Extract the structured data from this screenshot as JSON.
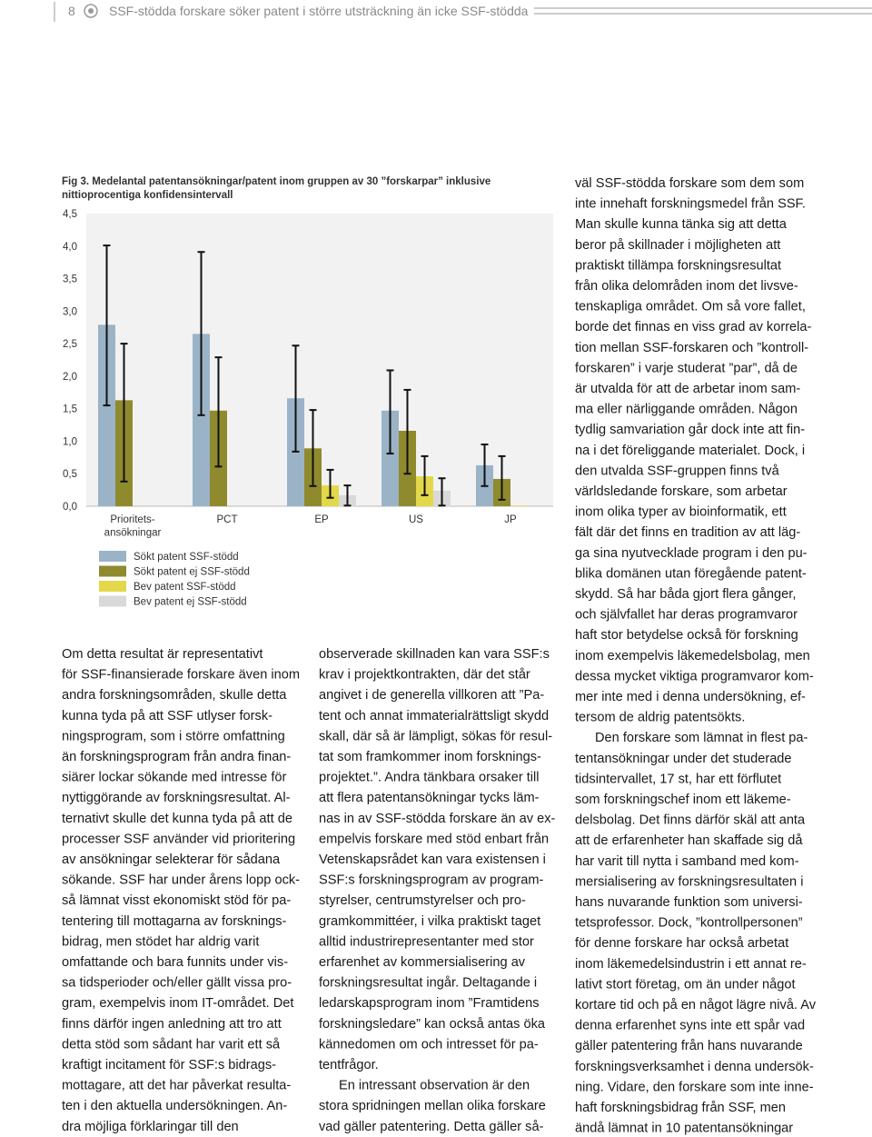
{
  "header": {
    "page_number": "8",
    "title": "SSF-stödda forskare söker patent i större utsträckning än icke SSF-stödda"
  },
  "chart_data": {
    "type": "bar",
    "title_lines": [
      "Fig 3. Medelantal patentansökningar/patent inom gruppen av 30 ”forskarpar” inklusive",
      "nittioprocentiga konfidensintervall"
    ],
    "categories": [
      "Prioritets-\nansökningar",
      "PCT",
      "EP",
      "US",
      "JP"
    ],
    "series": [
      {
        "name": "Sökt patent SSF-stödd",
        "color": "#9bb3c7",
        "values": [
          2.79,
          2.65,
          1.66,
          1.47,
          0.63
        ],
        "error_high": [
          4.01,
          3.91,
          2.47,
          2.09,
          0.95
        ],
        "error_low": [
          1.55,
          1.4,
          0.84,
          0.81,
          0.31
        ]
      },
      {
        "name": "Sökt patent ej SSF-stödd",
        "color": "#8f8a2e",
        "values": [
          1.63,
          1.47,
          0.89,
          1.16,
          0.42
        ],
        "error_high": [
          2.5,
          2.29,
          1.48,
          1.79,
          0.77
        ],
        "error_low": [
          0.38,
          0.61,
          0.31,
          0.5,
          0.1
        ]
      },
      {
        "name": "Bev patent SSF-stödd",
        "color": "#e3d84a",
        "values": [
          null,
          null,
          0.32,
          0.46,
          0.01
        ],
        "error_high": [
          null,
          null,
          0.56,
          0.77,
          null
        ],
        "error_low": [
          null,
          null,
          0.13,
          0.17,
          null
        ]
      },
      {
        "name": "Bev patent ej SSF-stödd",
        "color": "#d9d9d9",
        "values": [
          null,
          null,
          0.17,
          0.24,
          null
        ],
        "error_high": [
          null,
          null,
          0.32,
          0.43,
          null
        ],
        "error_low": [
          null,
          null,
          0.01,
          0.01,
          null
        ]
      }
    ],
    "ylim": [
      0,
      4.5
    ],
    "yticks": [
      {
        "value": 0,
        "label": "0,0"
      },
      {
        "value": 0.5,
        "label": "0,5"
      },
      {
        "value": 1,
        "label": "1,0"
      },
      {
        "value": 1.5,
        "label": "1,5"
      },
      {
        "value": 2,
        "label": "2,0"
      },
      {
        "value": 2.5,
        "label": "2,5"
      },
      {
        "value": 3,
        "label": "3,0"
      },
      {
        "value": 3.5,
        "label": "3,5"
      },
      {
        "value": 4,
        "label": "4,0"
      },
      {
        "value": 4.5,
        "label": "4,5"
      }
    ],
    "grid": false
  },
  "columns": [
    [
      [
        "Om detta resultat är representativt",
        "för SSF-finansierade forskare även inom",
        "andra forskningsområden, skulle detta",
        "kunna tyda på att SSF utlyser forsk-",
        "ningsprogram, som i större omfattning",
        "än forskningsprogram från andra finan-",
        "siärer lockar sökande med intresse för",
        "nyttiggörande av forskningsresultat. Al-",
        "ternativt skulle det kunna tyda på att de",
        "processer SSF använder vid prioritering",
        "av ansökningar selekterar för sådana",
        "sökande. SSF har under årens lopp ock-",
        "så lämnat visst ekonomiskt stöd för pa-",
        "tentering till mottagarna av forsknings-",
        "bidrag, men stödet har aldrig varit",
        "omfattande och bara funnits under vis-",
        "sa tidsperioder och/eller gällt vissa pro-",
        "gram, exempelvis inom IT-området. Det",
        "finns därför ingen anledning att tro att",
        "detta stöd som sådant har varit ett så",
        "kraftigt incitament för SSF:s bidrags-",
        "mottagare, att det har påverkat resulta-",
        "ten i den aktuella undersökningen. An-",
        "dra möjliga förklaringar till den"
      ]
    ],
    [
      [
        "observerade skillnaden kan vara SSF:s",
        "krav i projektkontrakten, där det står",
        "angivet i de generella villkoren att ”Pa-",
        "tent och annat immaterialrättsligt skydd",
        "skall, där så är lämpligt, sökas för resul-",
        "tat som framkommer inom forsknings-",
        "projektet.”. Andra tänkbara orsaker till",
        "att flera patentansökningar tycks läm-",
        "nas in av SSF-stödda forskare än av ex-",
        "empelvis forskare med stöd enbart från",
        "Vetenskapsrådet kan vara existensen i",
        "SSF:s forskningsprogram av program-",
        "styrelser, centrumstyrelser och pro-",
        "gramkommittéer, i vilka praktiskt taget",
        "alltid industrirepresentanter med stor",
        "erfarenhet av kommersialisering av",
        "forskningsresultat ingår. Deltagande i",
        "ledarskapsprogram inom ”Framtidens",
        "forskningsledare” kan också antas öka",
        "kännedomen om och intresset för pa-",
        "tentfrågor."
      ],
      [
        "En intressant observation är den",
        "stora spridningen mellan olika forskare",
        "vad gäller patentering. Detta gäller så-"
      ]
    ],
    [
      [
        "väl SSF-stödda forskare som dem som",
        "inte innehaft forskningsmedel från SSF.",
        "Man skulle kunna tänka sig att detta",
        "beror på skillnader i möjligheten att",
        "praktiskt tillämpa forskningsresultat",
        "från olika delområden inom det livsve-",
        "tenskapliga området. Om så vore fallet,",
        "borde det finnas en viss grad av korrela-",
        "tion mellan SSF-forskaren och ”kontroll-",
        "forskaren” i varje studerat ”par”, då de",
        "är utvalda för att de arbetar inom sam-",
        "ma eller närliggande områden. Någon",
        "tydlig samvariation går dock inte att fin-",
        "na i det föreliggande materialet. Dock, i",
        "den utvalda SSF-gruppen finns två",
        "världsledande forskare, som arbetar",
        "inom olika typer av bioinformatik, ett",
        "fält där det finns en tradition av att läg-",
        "ga sina nyutvecklade program i den pu-",
        "blika domänen utan föregående patent-",
        "skydd. Så har båda gjort flera gånger,",
        "och självfallet har deras programvaror",
        "haft stor betydelse också för forskning",
        "inom exempelvis läkemedelsbolag, men",
        "dessa mycket viktiga programvaror kom-",
        "mer inte med i denna undersökning, ef-",
        "tersom de aldrig patentsökts."
      ],
      [
        "Den forskare som lämnat in flest pa-",
        "tentansökningar under det studerade",
        "tidsintervallet, 17 st, har ett förflutet",
        "som forskningschef inom ett läkeme-",
        "delsbolag. Det finns därför skäl att anta",
        "att de erfarenheter han skaffade sig då",
        "har varit till nytta i samband med kom-",
        "mersialisering av forskningsresultaten i",
        "hans nuvarande funktion som universi-",
        "tetsprofessor. Dock, ”kontrollpersonen”",
        "för denne forskare har också arbetat",
        "inom läkemedelsindustrin i ett annat re-",
        "lativt stort företag, om än under något",
        "kortare tid och på en något lägre nivå. Av",
        "denna erfarenhet syns inte ett spår vad",
        "gäller patentering från hans nuvarande",
        "forskningsverksamhet i denna undersök-",
        "ning. Vidare, den forskare som inte inne-",
        "haft forskningsbidrag från SSF, men",
        "ändå lämnat in 10 patentansökningar"
      ]
    ]
  ]
}
